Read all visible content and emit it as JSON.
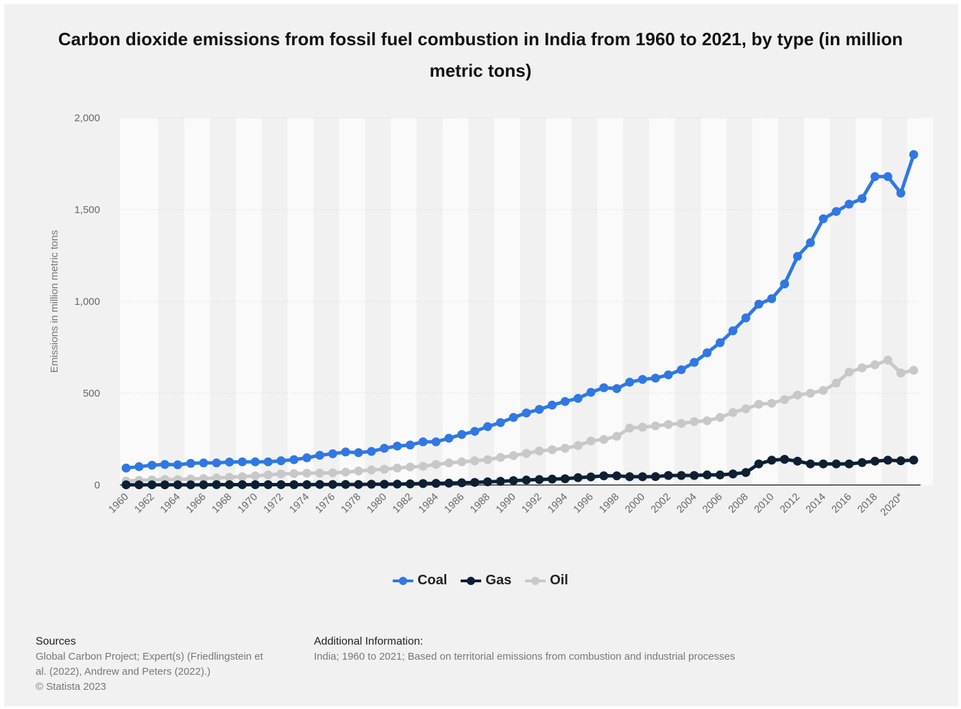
{
  "chart_data": {
    "type": "line",
    "title": "Carbon dioxide emissions from fossil fuel combustion in India from 1960 to 2021, by type (in million metric tons)",
    "ylabel": "Emissions in million metric tons",
    "xlabel": "",
    "ylim": [
      0,
      2000
    ],
    "yticks": [
      "0",
      "500",
      "1,000",
      "1,500",
      "2,000"
    ],
    "ytick_values": [
      0,
      500,
      1000,
      1500,
      2000
    ],
    "grid": true,
    "legend_position": "bottom",
    "x": [
      "1960",
      "1961",
      "1962",
      "1963",
      "1964",
      "1965",
      "1966",
      "1967",
      "1968",
      "1969",
      "1970",
      "1971",
      "1972",
      "1973",
      "1974",
      "1975",
      "1976",
      "1977",
      "1978",
      "1979",
      "1980",
      "1981",
      "1982",
      "1983",
      "1984",
      "1985",
      "1986",
      "1987",
      "1988",
      "1989",
      "1990",
      "1991",
      "1992",
      "1993",
      "1994",
      "1995",
      "1996",
      "1997",
      "1998",
      "1999",
      "2000",
      "2001",
      "2002",
      "2003",
      "2004",
      "2005",
      "2006",
      "2007",
      "2008",
      "2009",
      "2010",
      "2011",
      "2012",
      "2013",
      "2014",
      "2015",
      "2016",
      "2017",
      "2018",
      "2019",
      "2020*",
      "2021*"
    ],
    "xtick_labels": [
      "1960",
      "1962",
      "1964",
      "1966",
      "1968",
      "1970",
      "1972",
      "1974",
      "1976",
      "1978",
      "1980",
      "1982",
      "1984",
      "1986",
      "1988",
      "1990",
      "1992",
      "1994",
      "1996",
      "1998",
      "2000",
      "2002",
      "2004",
      "2006",
      "2008",
      "2010",
      "2012",
      "2014",
      "2016",
      "2018",
      "2020*"
    ],
    "series": [
      {
        "name": "Coal",
        "color": "#2f78e3",
        "values": [
          92,
          100,
          108,
          112,
          110,
          118,
          120,
          120,
          125,
          126,
          126,
          126,
          132,
          138,
          148,
          162,
          170,
          180,
          176,
          183,
          200,
          212,
          218,
          235,
          235,
          255,
          275,
          292,
          318,
          340,
          368,
          392,
          412,
          435,
          455,
          472,
          505,
          530,
          525,
          560,
          575,
          582,
          600,
          628,
          668,
          720,
          775,
          840,
          910,
          985,
          1015,
          1095,
          1245,
          1320,
          1450,
          1490,
          1530,
          1560,
          1680,
          1680,
          1590,
          1800
        ]
      },
      {
        "name": "Gas",
        "color": "#0c1f33",
        "values": [
          1,
          1,
          1,
          1,
          1,
          1,
          1,
          2,
          2,
          2,
          2,
          2,
          2,
          2,
          2,
          3,
          3,
          3,
          3,
          4,
          4,
          5,
          6,
          8,
          9,
          10,
          12,
          14,
          17,
          20,
          24,
          27,
          30,
          32,
          34,
          40,
          44,
          50,
          50,
          45,
          45,
          46,
          52,
          52,
          52,
          55,
          55,
          60,
          68,
          115,
          135,
          140,
          130,
          115,
          115,
          115,
          115,
          122,
          130,
          135,
          132,
          136
        ]
      },
      {
        "name": "Oil",
        "color": "#c8c8c8",
        "values": [
          22,
          25,
          28,
          30,
          30,
          33,
          35,
          38,
          42,
          45,
          50,
          55,
          60,
          62,
          64,
          65,
          66,
          70,
          76,
          82,
          86,
          92,
          98,
          102,
          112,
          120,
          126,
          132,
          138,
          150,
          160,
          172,
          185,
          192,
          200,
          215,
          240,
          248,
          265,
          310,
          315,
          322,
          330,
          335,
          345,
          350,
          368,
          395,
          415,
          440,
          445,
          465,
          490,
          500,
          515,
          555,
          615,
          638,
          655,
          680,
          610,
          625
        ]
      }
    ]
  },
  "legend": {
    "coal": "Coal",
    "gas": "Gas",
    "oil": "Oil"
  },
  "footer": {
    "sources_heading": "Sources",
    "sources_lines": [
      "Global Carbon Project; Expert(s) (Friedlingstein et",
      "al. (2022), Andrew and Peters (2022).)",
      "© Statista 2023"
    ],
    "additional_heading": "Additional Information:",
    "additional_text": "India; 1960 to 2021; Based on territorial emissions from combustion and industrial processes"
  }
}
